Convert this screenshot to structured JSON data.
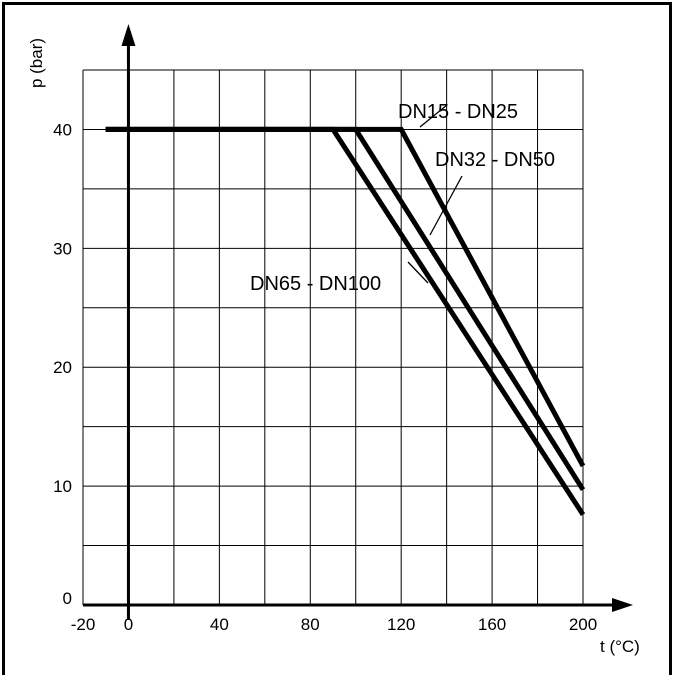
{
  "chart_data": {
    "type": "line",
    "title": "",
    "xlabel": "t (°C)",
    "ylabel": "p (bar)",
    "xlim": [
      -20,
      200
    ],
    "ylim": [
      0,
      45
    ],
    "x_ticks": [
      -20,
      0,
      40,
      80,
      120,
      160,
      200
    ],
    "y_ticks": [
      0,
      10,
      20,
      30,
      40
    ],
    "grid": true,
    "colors": {
      "line": "#000000",
      "grid": "#000000",
      "background": "#ffffff"
    },
    "series": [
      {
        "name": "DN15 - DN25",
        "points": [
          [
            -10,
            40
          ],
          [
            120,
            40
          ],
          [
            200,
            11.7
          ]
        ]
      },
      {
        "name": "DN32 - DN50",
        "points": [
          [
            -10,
            40
          ],
          [
            100,
            40
          ],
          [
            200,
            9.7
          ]
        ]
      },
      {
        "name": "DN65 - DN100",
        "points": [
          [
            -10,
            40
          ],
          [
            90,
            40
          ],
          [
            200,
            7.6
          ]
        ]
      }
    ]
  }
}
